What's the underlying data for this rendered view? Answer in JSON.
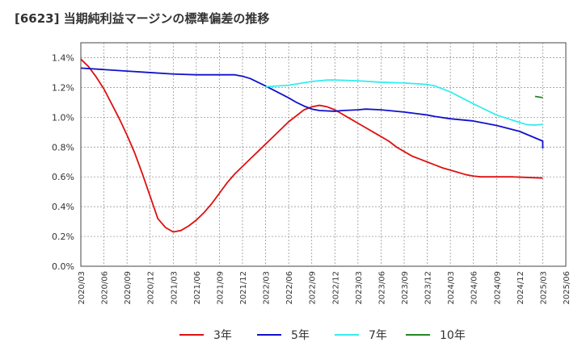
{
  "title": "[6623]  当期純利益マージンの標準偏差の推移",
  "chart_data": {
    "type": "line",
    "title": "[6623]  当期純利益マージンの標準偏差の推移",
    "xlabel": "",
    "ylabel": "",
    "ylim": [
      0,
      1.5
    ],
    "yticks": [
      "0.0%",
      "0.2%",
      "0.4%",
      "0.6%",
      "0.8%",
      "1.0%",
      "1.2%",
      "1.4%"
    ],
    "ytick_values": [
      0,
      0.2,
      0.4,
      0.6,
      0.8,
      1.0,
      1.2,
      1.4
    ],
    "xticks": [
      "2020/03",
      "2020/06",
      "2020/09",
      "2020/12",
      "2021/03",
      "2021/06",
      "2021/09",
      "2021/12",
      "2022/03",
      "2022/06",
      "2022/09",
      "2022/12",
      "2023/03",
      "2023/06",
      "2023/09",
      "2023/12",
      "2024/03",
      "2024/06",
      "2024/09",
      "2024/12",
      "2025/03",
      "2025/06"
    ],
    "grid": true,
    "legend_position": "bottom",
    "series": [
      {
        "name": "3年",
        "color": "#dd1111",
        "points": [
          [
            "2020/03",
            1.39
          ],
          [
            "2020/04",
            1.34
          ],
          [
            "2020/05",
            1.27
          ],
          [
            "2020/06",
            1.19
          ],
          [
            "2020/07",
            1.09
          ],
          [
            "2020/08",
            0.99
          ],
          [
            "2020/09",
            0.88
          ],
          [
            "2020/10",
            0.76
          ],
          [
            "2020/11",
            0.62
          ],
          [
            "2020/12",
            0.47
          ],
          [
            "2021/01",
            0.32
          ],
          [
            "2021/02",
            0.26
          ],
          [
            "2021/03",
            0.23
          ],
          [
            "2021/04",
            0.24
          ],
          [
            "2021/05",
            0.27
          ],
          [
            "2021/06",
            0.31
          ],
          [
            "2021/07",
            0.36
          ],
          [
            "2021/08",
            0.42
          ],
          [
            "2021/09",
            0.49
          ],
          [
            "2021/10",
            0.56
          ],
          [
            "2021/11",
            0.62
          ],
          [
            "2021/12",
            0.67
          ],
          [
            "2022/01",
            0.72
          ],
          [
            "2022/02",
            0.77
          ],
          [
            "2022/03",
            0.82
          ],
          [
            "2022/04",
            0.87
          ],
          [
            "2022/05",
            0.92
          ],
          [
            "2022/06",
            0.97
          ],
          [
            "2022/07",
            1.01
          ],
          [
            "2022/08",
            1.05
          ],
          [
            "2022/09",
            1.07
          ],
          [
            "2022/10",
            1.08
          ],
          [
            "2022/11",
            1.07
          ],
          [
            "2022/12",
            1.05
          ],
          [
            "2023/01",
            1.02
          ],
          [
            "2023/02",
            0.99
          ],
          [
            "2023/03",
            0.96
          ],
          [
            "2023/04",
            0.93
          ],
          [
            "2023/05",
            0.9
          ],
          [
            "2023/06",
            0.87
          ],
          [
            "2023/07",
            0.84
          ],
          [
            "2023/08",
            0.8
          ],
          [
            "2023/09",
            0.77
          ],
          [
            "2023/10",
            0.74
          ],
          [
            "2023/11",
            0.72
          ],
          [
            "2023/12",
            0.7
          ],
          [
            "2024/01",
            0.68
          ],
          [
            "2024/02",
            0.66
          ],
          [
            "2024/03",
            0.645
          ],
          [
            "2024/04",
            0.63
          ],
          [
            "2024/05",
            0.615
          ],
          [
            "2024/06",
            0.605
          ],
          [
            "2024/07",
            0.6
          ],
          [
            "2024/08",
            0.6
          ],
          [
            "2024/09",
            0.6
          ],
          [
            "2024/10",
            0.6
          ],
          [
            "2024/11",
            0.6
          ],
          [
            "2024/12",
            0.598
          ],
          [
            "2025/01",
            0.596
          ],
          [
            "2025/02",
            0.594
          ],
          [
            "2025/03",
            0.592
          ]
        ]
      },
      {
        "name": "5年",
        "color": "#1111cc",
        "points": [
          [
            "2020/03",
            1.33
          ],
          [
            "2020/06",
            1.32
          ],
          [
            "2020/09",
            1.31
          ],
          [
            "2020/12",
            1.3
          ],
          [
            "2021/03",
            1.29
          ],
          [
            "2021/06",
            1.285
          ],
          [
            "2021/09",
            1.285
          ],
          [
            "2021/11",
            1.285
          ],
          [
            "2021/12",
            1.275
          ],
          [
            "2022/01",
            1.26
          ],
          [
            "2022/03",
            1.21
          ],
          [
            "2022/06",
            1.13
          ],
          [
            "2022/07",
            1.1
          ],
          [
            "2022/08",
            1.075
          ],
          [
            "2022/09",
            1.055
          ],
          [
            "2022/10",
            1.045
          ],
          [
            "2022/12",
            1.04
          ],
          [
            "2023/01",
            1.045
          ],
          [
            "2023/03",
            1.05
          ],
          [
            "2023/04",
            1.055
          ],
          [
            "2023/06",
            1.05
          ],
          [
            "2023/09",
            1.035
          ],
          [
            "2023/12",
            1.015
          ],
          [
            "2024/01",
            1.005
          ],
          [
            "2024/03",
            0.99
          ],
          [
            "2024/06",
            0.975
          ],
          [
            "2024/09",
            0.945
          ],
          [
            "2024/12",
            0.905
          ],
          [
            "2025/03",
            0.84
          ],
          [
            "2025/03",
            0.79
          ]
        ]
      },
      {
        "name": "7年",
        "color": "#33eeee",
        "points": [
          [
            "2022/03",
            1.205
          ],
          [
            "2022/06",
            1.215
          ],
          [
            "2022/09",
            1.24
          ],
          [
            "2022/11",
            1.25
          ],
          [
            "2022/12",
            1.25
          ],
          [
            "2023/03",
            1.245
          ],
          [
            "2023/06",
            1.235
          ],
          [
            "2023/09",
            1.23
          ],
          [
            "2023/12",
            1.22
          ],
          [
            "2024/01",
            1.21
          ],
          [
            "2024/03",
            1.17
          ],
          [
            "2024/06",
            1.09
          ],
          [
            "2024/09",
            1.015
          ],
          [
            "2024/12",
            0.965
          ],
          [
            "2025/01",
            0.95
          ],
          [
            "2025/02",
            0.948
          ],
          [
            "2025/03",
            0.952
          ]
        ]
      },
      {
        "name": "10年",
        "color": "#228822",
        "points": [
          [
            "2025/02",
            1.14
          ],
          [
            "2025/03",
            1.132
          ]
        ]
      }
    ]
  }
}
